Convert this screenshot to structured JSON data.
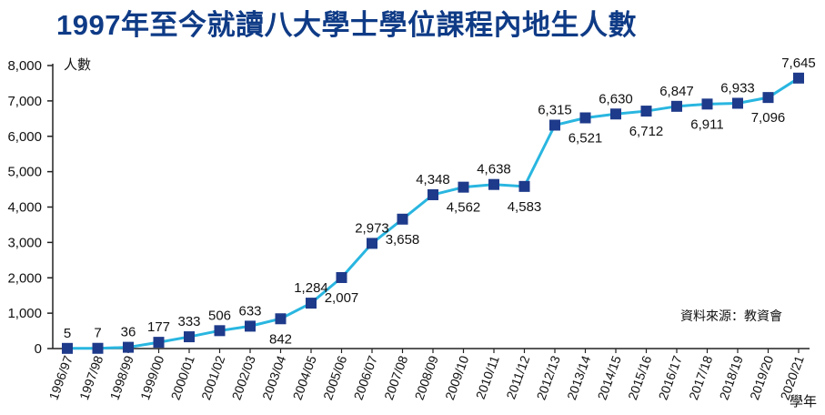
{
  "chart_data": {
    "type": "line",
    "title": "1997年至今就讀八大學士學位課程內地生人數",
    "ylabel": "人數",
    "xlabel": "學年",
    "source": "資料來源：教資會",
    "ylim": [
      0,
      8000
    ],
    "yticks": [
      "0",
      "1,000",
      "2,000",
      "3,000",
      "4,000",
      "5,000",
      "6,000",
      "7,000",
      "8,000"
    ],
    "categories": [
      "1996/97",
      "1997/98",
      "1998/99",
      "1999/00",
      "2000/01",
      "2001/02",
      "2002/03",
      "2003/04",
      "2004/05",
      "2005/06",
      "2006/07",
      "2007/08",
      "2008/09",
      "2009/10",
      "2010/11",
      "2011/12",
      "2012/13",
      "2013/14",
      "2014/15",
      "2015/16",
      "2016/17",
      "2017/18",
      "2018/19",
      "2019/20",
      "2020/21"
    ],
    "values": [
      5,
      7,
      36,
      177,
      333,
      506,
      633,
      842,
      1284,
      2007,
      2973,
      3658,
      4348,
      4562,
      4638,
      4583,
      6315,
      6521,
      6630,
      6712,
      6847,
      6911,
      6933,
      7096,
      7645
    ],
    "value_labels": [
      "5",
      "7",
      "36",
      "177",
      "333",
      "506",
      "633",
      "842",
      "1,284",
      "2,007",
      "2,973",
      "3,658",
      "4,348",
      "4,562",
      "4,638",
      "4,583",
      "6,315",
      "6,521",
      "6,630",
      "6,712",
      "6,847",
      "6,911",
      "6,933",
      "7,096",
      "7,645"
    ],
    "label_positions": [
      "above",
      "above",
      "above",
      "above",
      "above",
      "above",
      "above",
      "below",
      "above",
      "below",
      "above",
      "below",
      "above",
      "below",
      "above",
      "below",
      "above",
      "below",
      "above",
      "below",
      "above",
      "below",
      "above",
      "below",
      "above"
    ],
    "colors": {
      "line": "#29b6e0",
      "marker": "#1e3a8a",
      "title": "#0f3b86"
    },
    "grid": false
  }
}
